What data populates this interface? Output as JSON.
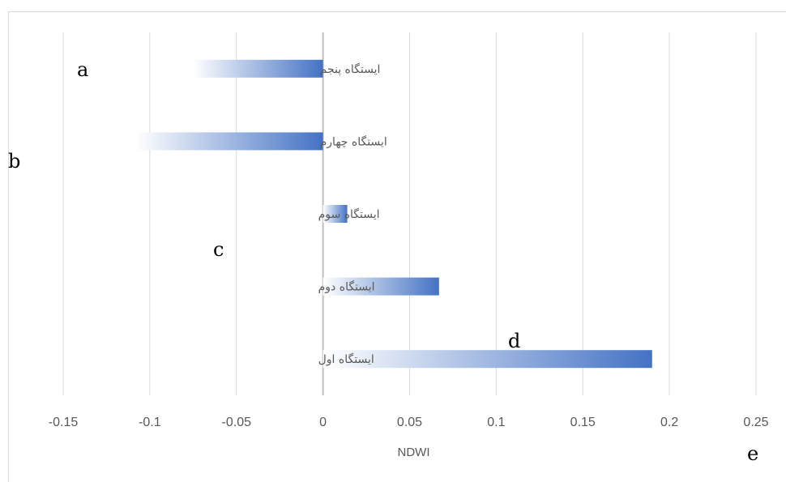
{
  "chart_data": {
    "type": "bar",
    "orientation": "horizontal",
    "categories": [
      "ایستگاه اول",
      "ایستگاه دوم",
      "ایستگاه سوم",
      "ایستگاه چهارم",
      "ایستگاه پنجم"
    ],
    "values": [
      0.19,
      0.067,
      0.014,
      -0.108,
      -0.075
    ],
    "xlabel": "NDWI",
    "ylabel": "",
    "title": "",
    "xlim": [
      -0.15,
      0.25
    ],
    "xticks": [
      "-0.15",
      "-0.1",
      "-0.05",
      "0",
      "0.05",
      "0.1",
      "0.15",
      "0.2",
      "0.25"
    ],
    "grid": "vertical",
    "legend": "none",
    "bar_fill": "gradient",
    "colors": {
      "bar": "#4472c4",
      "bar_fade": "#ffffff",
      "grid": "#d9d9d9",
      "axis": "#bfbfbf",
      "tick_text": "#595959",
      "category_text": "#595959"
    }
  },
  "annotations": [
    "a",
    "b",
    "c",
    "d",
    "e"
  ]
}
